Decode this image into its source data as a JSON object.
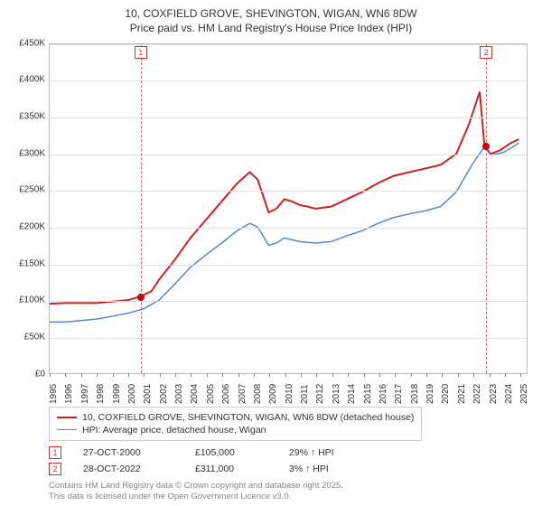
{
  "title_line1": "10, COXFIELD GROVE, SHEVINGTON, WIGAN, WN6 8DW",
  "title_line2": "Price paid vs. HM Land Registry's House Price Index (HPI)",
  "chart": {
    "type": "line",
    "background_color": "#ffffff",
    "grid_color": "#e0e0e0",
    "axis_color": "#bbbbbb",
    "xlim": [
      1995,
      2025.5
    ],
    "ylim": [
      0,
      450000
    ],
    "ytick_step": 50000,
    "yticks": [
      "£0",
      "£50K",
      "£100K",
      "£150K",
      "£200K",
      "£250K",
      "£300K",
      "£350K",
      "£400K",
      "£450K"
    ],
    "xticks": [
      1995,
      1996,
      1997,
      1998,
      1999,
      2000,
      2001,
      2002,
      2003,
      2004,
      2005,
      2006,
      2007,
      2008,
      2009,
      2010,
      2011,
      2012,
      2013,
      2014,
      2015,
      2016,
      2017,
      2018,
      2019,
      2020,
      2021,
      2022,
      2023,
      2024,
      2025
    ],
    "label_fontsize": 10,
    "series": [
      {
        "name": "price_paid",
        "color": "#cc2222",
        "line_width": 2,
        "points": [
          [
            1995,
            95000
          ],
          [
            1996,
            96000
          ],
          [
            1997,
            96000
          ],
          [
            1998,
            96000
          ],
          [
            1999,
            98000
          ],
          [
            2000,
            100000
          ],
          [
            2000.8,
            105000
          ],
          [
            2001.5,
            112000
          ],
          [
            2002,
            128000
          ],
          [
            2003,
            155000
          ],
          [
            2004,
            185000
          ],
          [
            2005,
            210000
          ],
          [
            2006,
            235000
          ],
          [
            2007,
            260000
          ],
          [
            2007.8,
            275000
          ],
          [
            2008.3,
            265000
          ],
          [
            2009,
            220000
          ],
          [
            2009.5,
            225000
          ],
          [
            2010,
            238000
          ],
          [
            2010.5,
            235000
          ],
          [
            2011,
            230000
          ],
          [
            2011.5,
            228000
          ],
          [
            2012,
            225000
          ],
          [
            2013,
            228000
          ],
          [
            2014,
            238000
          ],
          [
            2015,
            248000
          ],
          [
            2016,
            260000
          ],
          [
            2017,
            270000
          ],
          [
            2018,
            275000
          ],
          [
            2019,
            280000
          ],
          [
            2020,
            285000
          ],
          [
            2021,
            300000
          ],
          [
            2021.8,
            340000
          ],
          [
            2022.5,
            385000
          ],
          [
            2022.8,
            311000
          ],
          [
            2023.2,
            300000
          ],
          [
            2023.8,
            305000
          ],
          [
            2024.5,
            315000
          ],
          [
            2025,
            320000
          ]
        ]
      },
      {
        "name": "hpi",
        "color": "#5588cc",
        "line_width": 1.5,
        "points": [
          [
            1995,
            70000
          ],
          [
            1996,
            70000
          ],
          [
            1997,
            72000
          ],
          [
            1998,
            74000
          ],
          [
            1999,
            78000
          ],
          [
            2000,
            82000
          ],
          [
            2001,
            88000
          ],
          [
            2002,
            100000
          ],
          [
            2003,
            122000
          ],
          [
            2004,
            145000
          ],
          [
            2005,
            162000
          ],
          [
            2006,
            178000
          ],
          [
            2007,
            195000
          ],
          [
            2007.8,
            205000
          ],
          [
            2008.3,
            200000
          ],
          [
            2009,
            175000
          ],
          [
            2009.5,
            178000
          ],
          [
            2010,
            185000
          ],
          [
            2011,
            180000
          ],
          [
            2012,
            178000
          ],
          [
            2013,
            180000
          ],
          [
            2014,
            188000
          ],
          [
            2015,
            195000
          ],
          [
            2016,
            205000
          ],
          [
            2017,
            213000
          ],
          [
            2018,
            218000
          ],
          [
            2019,
            222000
          ],
          [
            2020,
            228000
          ],
          [
            2021,
            248000
          ],
          [
            2022,
            285000
          ],
          [
            2022.8,
            310000
          ],
          [
            2023.2,
            298000
          ],
          [
            2024,
            302000
          ],
          [
            2024.5,
            308000
          ],
          [
            2025,
            315000
          ]
        ]
      }
    ],
    "sale_markers": [
      {
        "num": "1",
        "year": 2000.8,
        "price": 105000
      },
      {
        "num": "2",
        "year": 2022.8,
        "price": 311000
      }
    ],
    "marker_color": "#cc3333",
    "dot_color": "#cc0000",
    "dash_color": "#d46a6a"
  },
  "legend": {
    "items": [
      {
        "color": "#cc2222",
        "width": 2,
        "label": "10, COXFIELD GROVE, SHEVINGTON, WIGAN, WN6 8DW (detached house)"
      },
      {
        "color": "#5588cc",
        "width": 1.5,
        "label": "HPI: Average price, detached house, Wigan"
      }
    ]
  },
  "sales": [
    {
      "num": "1",
      "date": "27-OCT-2000",
      "price": "£105,000",
      "hpi": "29% ↑ HPI"
    },
    {
      "num": "2",
      "date": "28-OCT-2022",
      "price": "£311,000",
      "hpi": "3% ↑ HPI"
    }
  ],
  "footer_line1": "Contains HM Land Registry data © Crown copyright and database right 2025.",
  "footer_line2": "This data is licensed under the Open Government Licence v3.0."
}
